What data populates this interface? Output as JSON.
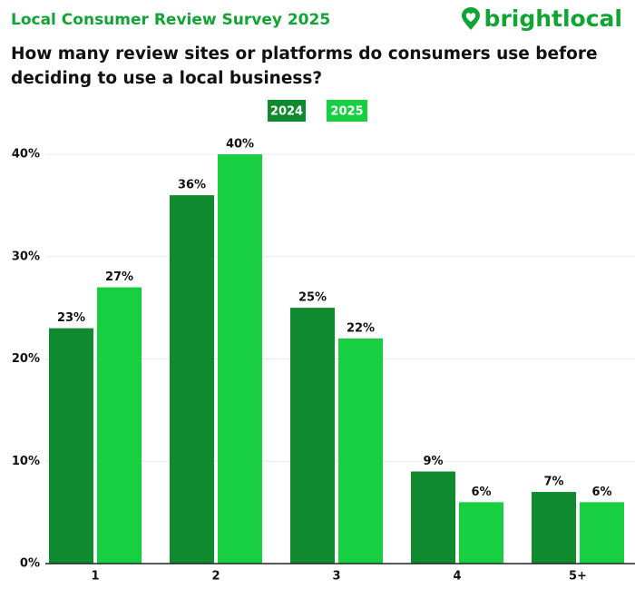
{
  "chart_data": {
    "type": "bar",
    "supertitle": "Local Consumer Review Survey 2025",
    "brand": "brightlocal",
    "title": "How many review sites or platforms do consumers use before deciding to use a local business?",
    "categories": [
      "1",
      "2",
      "3",
      "4",
      "5+"
    ],
    "series": [
      {
        "name": "2024",
        "color": "#0f8a2e",
        "values": [
          23,
          36,
          25,
          9,
          7
        ],
        "value_labels": [
          "23%",
          "36%",
          "25%",
          "9%",
          "7%"
        ]
      },
      {
        "name": "2025",
        "color": "#17cf40",
        "values": [
          27,
          40,
          22,
          6,
          6
        ],
        "value_labels": [
          "27%",
          "40%",
          "22%",
          "6%",
          "6%"
        ]
      }
    ],
    "ylim": [
      0,
      40
    ],
    "yticks": [
      {
        "value": 0,
        "label": "0%"
      },
      {
        "value": 10,
        "label": "10%"
      },
      {
        "value": 20,
        "label": "20%"
      },
      {
        "value": 30,
        "label": "30%"
      },
      {
        "value": 40,
        "label": "40%"
      }
    ],
    "grid": true
  }
}
